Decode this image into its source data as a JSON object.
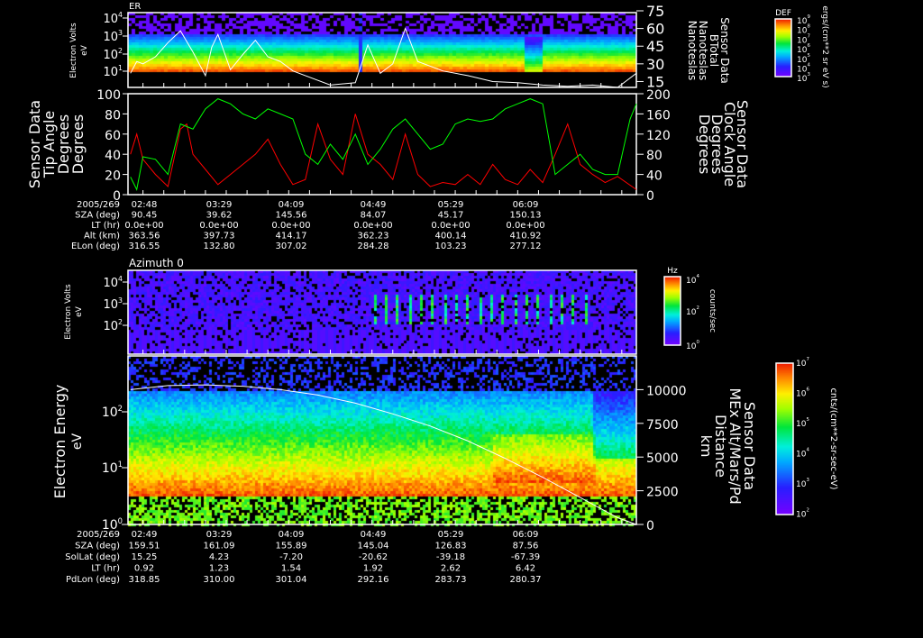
{
  "chart_data": [
    {
      "type": "heatmap",
      "title": "ER",
      "ylabel": "Electron Volts",
      "yunits": "eV",
      "yscale": "log",
      "yticks": [
        "10^1",
        "10^2",
        "10^3",
        "10^4"
      ],
      "right_axis": {
        "label": [
          "Sensor Data",
          "BTotal",
          "Nanoteslas",
          "Nanoteslas"
        ],
        "ticks": [
          15,
          30,
          45,
          60,
          75
        ],
        "range": [
          10,
          75
        ]
      },
      "colorbar": {
        "title": "DEF",
        "units": "ergs/(cm**2 sr eV s)",
        "ticks": [
          "10^9",
          "10^8",
          "10^7",
          "10^6",
          "10^5",
          "10^4",
          "10^3"
        ]
      },
      "line_series": {
        "name": "BTotal",
        "color": "#ffffff",
        "x": [
          2.7,
          2.75,
          2.8,
          2.9,
          3.0,
          3.1,
          3.2,
          3.3,
          3.35,
          3.4,
          3.45,
          3.5,
          3.6,
          3.7,
          3.8,
          3.9,
          4.0,
          4.1,
          4.3,
          4.5,
          4.6,
          4.7,
          4.8,
          4.9,
          5.0,
          5.2,
          5.4,
          5.6,
          5.8,
          6.0,
          6.2,
          6.4,
          6.6,
          6.75
        ],
        "y": [
          22,
          32,
          30,
          36,
          48,
          58,
          40,
          20,
          44,
          55,
          40,
          25,
          38,
          50,
          36,
          32,
          24,
          20,
          12,
          14,
          46,
          22,
          30,
          60,
          32,
          24,
          20,
          15,
          14,
          12,
          11,
          12,
          10,
          22
        ]
      }
    },
    {
      "type": "line",
      "ylabel_left": [
        "Sensor Data",
        "Tip Angle",
        "Degrees",
        "Degrees"
      ],
      "ylabel_right": [
        "Sensor Data",
        "Clock Angle",
        "Degrees",
        "Degrees"
      ],
      "ylim_left": [
        0,
        100
      ],
      "ylim_right": [
        0,
        200
      ],
      "yticks_left": [
        0,
        20,
        40,
        60,
        80,
        100
      ],
      "yticks_right": [
        0,
        40,
        80,
        120,
        160,
        200
      ],
      "series": [
        {
          "name": "Tip Angle",
          "color": "#ff0000",
          "axis": "left",
          "x": [
            2.7,
            2.75,
            2.8,
            2.9,
            3.0,
            3.1,
            3.15,
            3.2,
            3.3,
            3.4,
            3.5,
            3.6,
            3.7,
            3.8,
            3.9,
            4.0,
            4.1,
            4.2,
            4.3,
            4.4,
            4.5,
            4.6,
            4.7,
            4.8,
            4.9,
            5.0,
            5.1,
            5.2,
            5.3,
            5.4,
            5.5,
            5.6,
            5.7,
            5.8,
            5.9,
            6.0,
            6.1,
            6.2,
            6.3,
            6.4,
            6.5,
            6.6,
            6.75
          ],
          "y": [
            40,
            60,
            35,
            20,
            8,
            65,
            70,
            40,
            25,
            10,
            20,
            30,
            40,
            55,
            30,
            10,
            15,
            70,
            35,
            20,
            80,
            40,
            30,
            15,
            60,
            20,
            8,
            12,
            10,
            20,
            10,
            30,
            15,
            10,
            25,
            12,
            40,
            70,
            30,
            20,
            12,
            18,
            5
          ]
        },
        {
          "name": "Clock Angle",
          "color": "#00ff00",
          "axis": "right",
          "x": [
            2.7,
            2.75,
            2.8,
            2.9,
            3.0,
            3.1,
            3.2,
            3.3,
            3.4,
            3.5,
            3.6,
            3.7,
            3.8,
            3.9,
            4.0,
            4.1,
            4.2,
            4.3,
            4.4,
            4.5,
            4.6,
            4.7,
            4.8,
            4.9,
            5.0,
            5.1,
            5.2,
            5.3,
            5.4,
            5.5,
            5.6,
            5.7,
            5.8,
            5.9,
            6.0,
            6.1,
            6.2,
            6.3,
            6.4,
            6.5,
            6.6,
            6.7,
            6.75
          ],
          "y": [
            35,
            10,
            75,
            70,
            40,
            140,
            130,
            170,
            190,
            180,
            160,
            150,
            170,
            160,
            150,
            80,
            60,
            100,
            70,
            120,
            60,
            90,
            130,
            150,
            120,
            90,
            100,
            140,
            150,
            145,
            150,
            170,
            180,
            190,
            180,
            40,
            60,
            80,
            50,
            40,
            40,
            150,
            180
          ]
        }
      ]
    },
    {
      "type": "heatmap",
      "title": "Azimuth 0",
      "ylabel": "Electron Volts",
      "yunits": "eV",
      "yscale": "log",
      "yticks": [
        "10^2",
        "10^3",
        "10^4"
      ],
      "colorbar": {
        "title": "Hz",
        "units": "counts/sec",
        "ticks": [
          "10^4",
          "10^2",
          "10^0"
        ]
      }
    },
    {
      "type": "heatmap",
      "ylabel": "Electron Energy",
      "yunits": "eV",
      "yscale": "log",
      "yticks": [
        "10^0",
        "10^1",
        "10^2"
      ],
      "right_axis": {
        "label": [
          "Sensor Data",
          "MEx Alt/Mars/Pd",
          "Distance",
          "km"
        ],
        "ticks": [
          0,
          2500,
          5000,
          7500,
          10000
        ],
        "range": [
          0,
          12500
        ]
      },
      "colorbar": {
        "units": "cnts/(cm**2-sr-sec-eV)",
        "ticks": [
          "10^7",
          "10^6",
          "10^5",
          "10^4",
          "10^3",
          "10^2"
        ]
      },
      "line_series": {
        "name": "MEx Alt/Mars/Pd Distance",
        "color": "#ffffff",
        "x": [
          2.7,
          3.0,
          3.3,
          3.6,
          3.9,
          4.2,
          4.5,
          4.8,
          5.1,
          5.4,
          5.7,
          6.0,
          6.3,
          6.6,
          6.75
        ],
        "y": [
          10000,
          10300,
          10350,
          10250,
          10000,
          9600,
          9000,
          8200,
          7300,
          6200,
          4900,
          3500,
          2000,
          500,
          0
        ]
      }
    }
  ],
  "top_table": {
    "rows": [
      {
        "label": "2005/269",
        "values": [
          "02:48",
          "03:29",
          "04:09",
          "04:49",
          "05:29",
          "06:09"
        ]
      },
      {
        "label": "SZA (deg)",
        "values": [
          "90.45",
          "39.62",
          "145.56",
          "84.07",
          "45.17",
          "150.13"
        ]
      },
      {
        "label": "LT (hr)",
        "values": [
          "0.0e+00",
          "0.0e+00",
          "0.0e+00",
          "0.0e+00",
          "0.0e+00",
          "0.0e+00"
        ]
      },
      {
        "label": "Alt (km)",
        "values": [
          "363.56",
          "397.73",
          "414.17",
          "362.23",
          "400.14",
          "410.92"
        ]
      },
      {
        "label": "ELon (deg)",
        "values": [
          "316.55",
          "132.80",
          "307.02",
          "284.28",
          "103.23",
          "277.12"
        ]
      }
    ]
  },
  "bottom_table": {
    "rows": [
      {
        "label": "2005/269",
        "values": [
          "02:49",
          "03:29",
          "04:09",
          "04:49",
          "05:29",
          "06:09"
        ]
      },
      {
        "label": "SZA (deg)",
        "values": [
          "159.51",
          "161.09",
          "155.89",
          "145.04",
          "126.83",
          "87.56"
        ]
      },
      {
        "label": "SolLat (deg)",
        "values": [
          "15.25",
          "4.23",
          "-7.20",
          "-20.62",
          "-39.18",
          "-67.39"
        ]
      },
      {
        "label": "LT (hr)",
        "values": [
          "0.92",
          "1.23",
          "1.54",
          "1.92",
          "2.62",
          "6.42"
        ]
      },
      {
        "label": "PdLon (deg)",
        "values": [
          "318.85",
          "310.00",
          "301.04",
          "292.16",
          "283.73",
          "280.37"
        ]
      }
    ]
  }
}
